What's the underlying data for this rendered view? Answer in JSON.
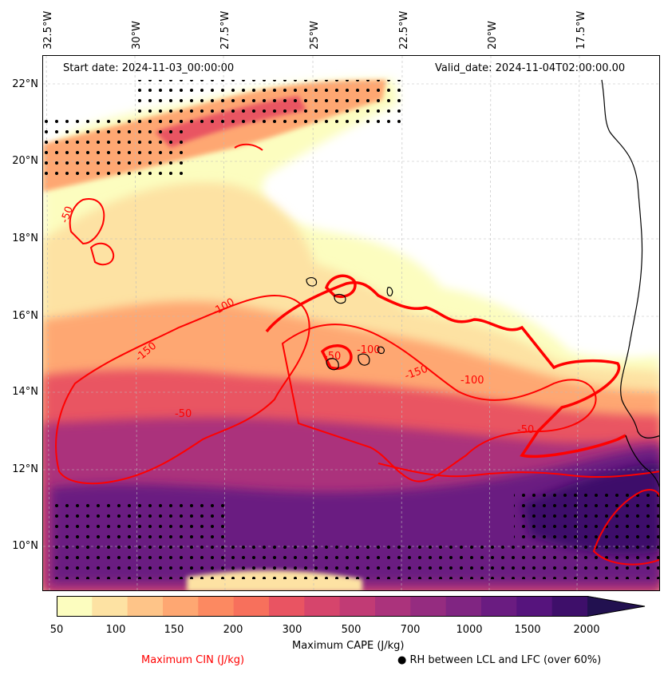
{
  "map": {
    "start_date": "Start date: 2024-11-03_00:00:00",
    "valid_date": "Valid_date: 2024-11-04T02:00:00.00",
    "lon_labels": [
      "32.5°W",
      "30°W",
      "27.5°W",
      "25°W",
      "22.5°W",
      "20°W",
      "17.5°W"
    ],
    "lat_labels": [
      "22°N",
      "20°N",
      "18°N",
      "16°N",
      "14°N",
      "12°N",
      "10°N"
    ],
    "cin_contour_labels": [
      "-50",
      "-100",
      "-150",
      "-50",
      "-100",
      "-50",
      "-100",
      "-150",
      "-50"
    ],
    "colors": {
      "cin_contour": "#ff0000",
      "coastline": "#000000",
      "stipple": "#000000"
    }
  },
  "colorbar": {
    "ticks": [
      "50",
      "100",
      "150",
      "200",
      "300",
      "500",
      "700",
      "1000",
      "1500",
      "2000"
    ],
    "label": "Maximum CAPE (J/kg)",
    "colors": [
      "#fcfdbf",
      "#fde2a3",
      "#fec488",
      "#fea772",
      "#fc8961",
      "#f7705c",
      "#e95462",
      "#d6456c",
      "#c13b75",
      "#ab337c",
      "#952c80",
      "#802582",
      "#6a1c81",
      "#56147d",
      "#3e0f6a",
      "#221150"
    ]
  },
  "legend": {
    "cin_label": "Maximum CIN (J/kg)",
    "rh_label": "RH between LCL and LFC (over 60%)",
    "rh_marker": "●"
  }
}
